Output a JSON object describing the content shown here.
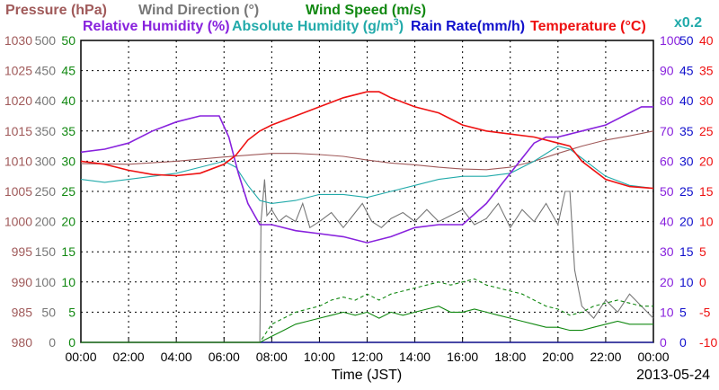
{
  "chart_data": {
    "type": "line",
    "date": "2013-05-24",
    "xlabel": "Time (JST)",
    "x_ticks": [
      "00:00",
      "02:00",
      "04:00",
      "06:00",
      "08:00",
      "10:00",
      "12:00",
      "14:00",
      "16:00",
      "18:00",
      "20:00",
      "22:00",
      "00:00"
    ],
    "x_range_hours": [
      0,
      24
    ],
    "grid": true,
    "axes": {
      "pressure": {
        "label": "Pressure (hPa)",
        "color": "#a05a5a",
        "ticks": [
          980,
          985,
          990,
          995,
          1000,
          1005,
          1010,
          1015,
          1020,
          1025,
          1030
        ],
        "range": [
          980,
          1030
        ],
        "side": "left"
      },
      "wind_dir": {
        "label": "Wind Direction (°)",
        "color": "#777777",
        "ticks": [
          0,
          50,
          100,
          150,
          200,
          250,
          300,
          350,
          400,
          450,
          500
        ],
        "range": [
          0,
          500
        ],
        "side": "left"
      },
      "wind_speed": {
        "label": "Wind Speed (m/s)",
        "color": "#118811",
        "ticks": [
          0,
          5,
          10,
          15,
          20,
          25,
          30,
          35,
          40,
          45,
          50
        ],
        "range": [
          0,
          50
        ],
        "side": "left"
      },
      "humidity": {
        "label": "Relative Humidity (%)",
        "color": "#8822dd",
        "ticks": [
          0,
          10,
          20,
          30,
          40,
          50,
          60,
          70,
          80,
          90,
          100
        ],
        "range": [
          0,
          100
        ],
        "side": "right"
      },
      "abs_humidity": {
        "label": "Absolute Humidity (g/m",
        "label_sup": "3",
        "label_end": ")",
        "color": "#22aaaa",
        "scale_note": "x0.2",
        "side": "right"
      },
      "rain_rate": {
        "label": "Rain Rate(mm/h)",
        "color": "#1111cc",
        "ticks": [
          0,
          5,
          10,
          15,
          20,
          25,
          30,
          35,
          40,
          45,
          50
        ],
        "range": [
          0,
          50
        ],
        "side": "right"
      },
      "temperature": {
        "label": "Temperature (°C)",
        "color": "#ee1111",
        "ticks": [
          -10,
          -5,
          0,
          5,
          10,
          15,
          20,
          25,
          30,
          35,
          40
        ],
        "range": [
          -10,
          40
        ],
        "side": "right"
      }
    },
    "series": [
      {
        "name": "Temperature",
        "axis": "temperature",
        "color": "#ee1111",
        "x": [
          0,
          1,
          2,
          3,
          4,
          5,
          6,
          6.5,
          7,
          7.5,
          8,
          9,
          10,
          11,
          12,
          12.5,
          13,
          14,
          15,
          16,
          17,
          18,
          19,
          20,
          20.5,
          21,
          22,
          23,
          24
        ],
        "y": [
          20,
          19.5,
          18.5,
          17.8,
          17.6,
          18.0,
          19.5,
          21,
          23.5,
          25,
          26,
          27.5,
          29,
          30.5,
          31.5,
          31.5,
          30.5,
          29,
          28,
          26,
          25,
          24.5,
          24,
          23,
          22.5,
          20,
          17,
          15.8,
          15.5
        ]
      },
      {
        "name": "Relative Humidity",
        "axis": "humidity",
        "color": "#8822dd",
        "x": [
          0,
          1,
          2,
          3,
          4,
          5,
          5.8,
          6.2,
          6.6,
          7,
          7.5,
          8,
          9,
          10,
          11,
          12,
          13,
          14,
          15,
          16,
          17,
          18,
          18.5,
          19,
          19.5,
          20,
          20.5,
          21,
          22,
          23,
          23.5,
          24
        ],
        "y": [
          63,
          64,
          66,
          70,
          73,
          75,
          75,
          68,
          56,
          46,
          39,
          39,
          37,
          36,
          35,
          33,
          35,
          38,
          39,
          39,
          46,
          56,
          61,
          66,
          68,
          68,
          69,
          70,
          72,
          76,
          78,
          78
        ]
      },
      {
        "name": "Absolute Humidity",
        "axis": "humidity",
        "color": "#22aaaa",
        "x": [
          0,
          1,
          2,
          3,
          4,
          5,
          6,
          6.5,
          7,
          7.5,
          8,
          9,
          10,
          11,
          12,
          13,
          14,
          15,
          16,
          17,
          18,
          19,
          20,
          20.5,
          21,
          21.5,
          22,
          23,
          24
        ],
        "y": [
          54,
          53,
          54,
          55,
          56,
          58,
          60,
          58,
          52,
          47,
          46,
          47,
          49,
          49,
          48,
          50,
          52,
          54,
          55,
          55,
          56,
          60,
          65,
          64,
          61,
          58,
          55,
          52,
          51
        ]
      },
      {
        "name": "Pressure",
        "axis": "pressure",
        "color": "#a05a5a",
        "x": [
          0,
          2,
          4,
          6,
          7,
          8,
          9,
          10,
          11,
          12,
          13,
          14,
          15,
          16,
          17,
          18,
          19,
          20,
          21,
          22,
          23,
          24
        ],
        "y": [
          1009.6,
          1009.5,
          1010.0,
          1010.7,
          1011.0,
          1011.3,
          1011.3,
          1011.1,
          1010.8,
          1010.2,
          1009.7,
          1009.4,
          1009.0,
          1008.7,
          1008.6,
          1009.0,
          1010.0,
          1011.3,
          1012.5,
          1013.5,
          1014.2,
          1015.0
        ]
      },
      {
        "name": "Wind Direction",
        "axis": "wind_dir",
        "color": "#777777",
        "x": [
          0,
          7.5,
          7.55,
          7.7,
          7.8,
          8.0,
          8.3,
          8.6,
          9.0,
          9.3,
          9.6,
          10,
          10.5,
          11,
          11.4,
          11.8,
          12.2,
          12.6,
          13,
          13.5,
          14,
          14.5,
          15,
          15.5,
          16,
          16.5,
          17,
          17.5,
          18,
          18.5,
          19,
          19.5,
          20,
          20.3,
          20.5,
          20.7,
          21,
          21.5,
          22,
          22.5,
          23,
          23.5,
          24
        ],
        "y": [
          0,
          0,
          200,
          270,
          210,
          220,
          200,
          210,
          200,
          230,
          190,
          200,
          215,
          190,
          210,
          230,
          200,
          190,
          205,
          215,
          200,
          220,
          200,
          210,
          220,
          195,
          205,
          230,
          190,
          220,
          200,
          230,
          195,
          250,
          250,
          120,
          60,
          40,
          70,
          50,
          80,
          60,
          40
        ]
      },
      {
        "name": "Wind Speed",
        "axis": "wind_speed",
        "color": "#118811",
        "x": [
          0,
          7.5,
          8,
          8.5,
          9,
          9.5,
          10,
          10.5,
          11,
          11.5,
          12,
          12.5,
          13,
          13.5,
          14,
          14.5,
          15,
          15.5,
          16,
          16.5,
          17,
          17.5,
          18,
          18.5,
          19,
          19.5,
          20,
          20.5,
          21,
          21.5,
          22,
          22.5,
          23,
          23.5,
          24
        ],
        "y": [
          0,
          0,
          1,
          2,
          3,
          3.5,
          4,
          4.5,
          5,
          4.5,
          5,
          4,
          5,
          4.5,
          5,
          5.5,
          6,
          5,
          5,
          5.5,
          5,
          4.5,
          4,
          3.5,
          3,
          2.5,
          2.5,
          2,
          2,
          2.5,
          3,
          3.5,
          3,
          3,
          3
        ]
      },
      {
        "name": "Wind Speed (gust)",
        "axis": "wind_speed",
        "color": "#118811",
        "dashed": true,
        "x": [
          0,
          7.5,
          8,
          8.5,
          9,
          9.5,
          10,
          10.5,
          11,
          11.5,
          12,
          12.5,
          13,
          13.5,
          14,
          14.5,
          15,
          15.5,
          16,
          16.5,
          17,
          17.5,
          18,
          18.5,
          19,
          19.5,
          20,
          20.5,
          21,
          21.5,
          22,
          22.5,
          23,
          23.5,
          24
        ],
        "y": [
          0,
          0,
          3,
          4,
          5,
          5.5,
          6,
          7,
          7.5,
          7,
          8,
          7,
          8,
          8.5,
          9,
          9.5,
          10,
          9.5,
          10,
          10.5,
          9.5,
          9,
          8.5,
          8,
          7,
          6,
          5.5,
          4.5,
          5,
          6,
          6.5,
          7,
          6.5,
          6,
          6
        ]
      },
      {
        "name": "Rain Rate",
        "axis": "rain_rate",
        "color": "#1111cc",
        "x": [
          0,
          24
        ],
        "y": [
          0,
          0
        ]
      }
    ]
  }
}
